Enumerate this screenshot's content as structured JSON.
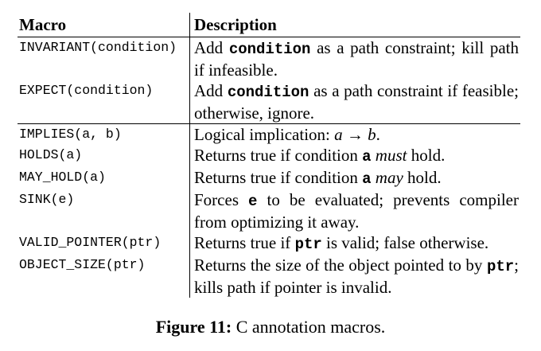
{
  "table": {
    "headers": {
      "macro": "Macro",
      "description": "Description"
    },
    "rows": [
      {
        "macro": "INVARIANT(condition)",
        "desc_pre": "Add ",
        "desc_code": "condition",
        "desc_post": " as a path constraint; kill path if infeasible."
      },
      {
        "macro": "EXPECT(condition)",
        "desc_pre": "Add ",
        "desc_code": "condition",
        "desc_post": " as a path constraint if feasible; otherwise, ignore."
      },
      {
        "macro": "IMPLIES(a, b)",
        "desc_pre": "Logical implication: ",
        "desc_math": "a → b",
        "desc_post": "."
      },
      {
        "macro": "HOLDS(a)",
        "desc_pre": "Returns true if condition ",
        "desc_code": "a",
        "desc_em": "must",
        "desc_post": " hold."
      },
      {
        "macro": "MAY_HOLD(a)",
        "desc_pre": "Returns true if condition ",
        "desc_code": "a",
        "desc_em": "may",
        "desc_post": " hold."
      },
      {
        "macro": "SINK(e)",
        "desc_pre": "Forces ",
        "desc_code": "e",
        "desc_post": " to be evaluated; prevents compiler from optimizing it away."
      },
      {
        "macro": "VALID_POINTER(ptr)",
        "desc_pre": "Returns true if ",
        "desc_code": "ptr",
        "desc_post": " is valid; false otherwise."
      },
      {
        "macro": "OBJECT_SIZE(ptr)",
        "desc_pre": "Returns the size of the object pointed to by ",
        "desc_code": "ptr",
        "desc_post": "; kills path if pointer is invalid."
      }
    ]
  },
  "caption": {
    "label": "Figure 11:",
    "text": "C annotation macros."
  }
}
